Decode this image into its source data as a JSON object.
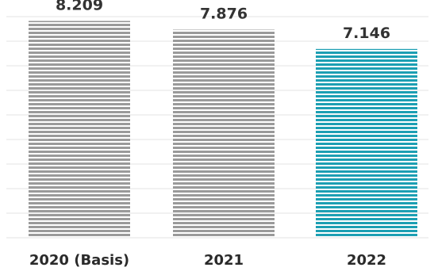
{
  "chart_data": {
    "type": "bar",
    "categories": [
      "2020 (Basis)",
      "2021",
      "2022"
    ],
    "values": [
      8.209,
      7.876,
      7.146
    ],
    "value_labels": [
      "8.209",
      "7.876",
      "7.146"
    ],
    "ylim": [
      0,
      8.4
    ],
    "grid": true,
    "colors": [
      "#9a9a9a",
      "#9a9a9a",
      "#1c9fb3"
    ]
  }
}
